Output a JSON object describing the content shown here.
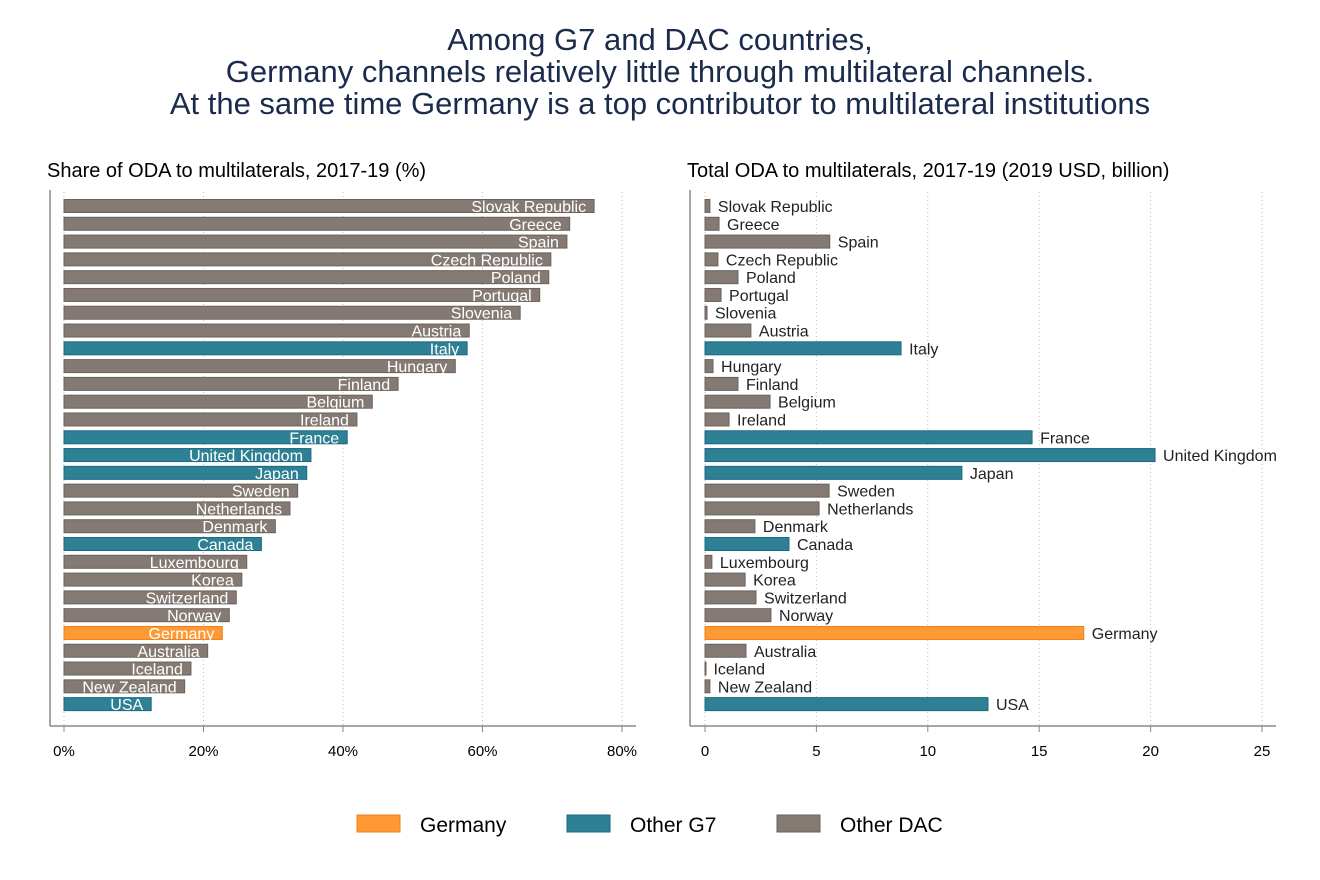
{
  "title_lines": [
    "Among G7 and DAC countries,",
    "Germany channels relatively little through multilateral channels.",
    "At the same time Germany is a top contributor to multilateral institutions"
  ],
  "colors": {
    "Germany": "#ff9933",
    "Other G7": "#2e8094",
    "Other DAC": "#857a73"
  },
  "legend": [
    "Germany",
    "Other G7",
    "Other DAC"
  ],
  "chart_data": [
    {
      "type": "bar",
      "orientation": "horizontal",
      "title": "Share of ODA to multilaterals, 2017-19 (%)",
      "xlim": [
        0,
        80
      ],
      "xticks": [
        0,
        20,
        40,
        60,
        80
      ],
      "xtick_labels": [
        "0%",
        "20%",
        "40%",
        "60%",
        "80%"
      ],
      "grid": "vertical dotted",
      "labels_inside": true,
      "categories": [
        "Slovak Republic",
        "Greece",
        "Spain",
        "Czech Republic",
        "Poland",
        "Portugal",
        "Slovenia",
        "Austria",
        "Italy",
        "Hungary",
        "Finland",
        "Belgium",
        "Ireland",
        "France",
        "United Kingdom",
        "Japan",
        "Sweden",
        "Netherlands",
        "Denmark",
        "Canada",
        "Luxembourg",
        "Korea",
        "Switzerland",
        "Norway",
        "Germany",
        "Australia",
        "Iceland",
        "New Zealand",
        "USA"
      ],
      "groups": [
        "Other DAC",
        "Other DAC",
        "Other DAC",
        "Other DAC",
        "Other DAC",
        "Other DAC",
        "Other DAC",
        "Other DAC",
        "Other G7",
        "Other DAC",
        "Other DAC",
        "Other DAC",
        "Other DAC",
        "Other G7",
        "Other G7",
        "Other G7",
        "Other DAC",
        "Other DAC",
        "Other DAC",
        "Other G7",
        "Other DAC",
        "Other DAC",
        "Other DAC",
        "Other DAC",
        "Germany",
        "Other DAC",
        "Other DAC",
        "Other DAC",
        "Other G7"
      ],
      "values": [
        76.0,
        72.5,
        72.1,
        69.8,
        69.5,
        68.2,
        65.4,
        58.1,
        57.8,
        56.1,
        47.9,
        44.2,
        42.0,
        40.6,
        35.4,
        34.8,
        33.5,
        32.4,
        30.3,
        28.3,
        26.2,
        25.5,
        24.7,
        23.7,
        22.7,
        20.6,
        18.2,
        17.3,
        12.5
      ]
    },
    {
      "type": "bar",
      "orientation": "horizontal",
      "title": "Total ODA to multilaterals, 2017-19 (2019 USD, billion)",
      "xlim": [
        0,
        25
      ],
      "xticks": [
        0,
        5,
        10,
        15,
        20,
        25
      ],
      "xtick_labels": [
        "0",
        "5",
        "10",
        "15",
        "20",
        "25"
      ],
      "grid": "vertical dotted",
      "labels_inside": false,
      "categories": [
        "Slovak Republic",
        "Greece",
        "Spain",
        "Czech Republic",
        "Poland",
        "Portugal",
        "Slovenia",
        "Austria",
        "Italy",
        "Hungary",
        "Finland",
        "Belgium",
        "Ireland",
        "France",
        "United Kingdom",
        "Japan",
        "Sweden",
        "Netherlands",
        "Denmark",
        "Canada",
        "Luxembourg",
        "Korea",
        "Switzerland",
        "Norway",
        "Germany",
        "Australia",
        "Iceland",
        "New Zealand",
        "USA"
      ],
      "groups": [
        "Other DAC",
        "Other DAC",
        "Other DAC",
        "Other DAC",
        "Other DAC",
        "Other DAC",
        "Other DAC",
        "Other DAC",
        "Other G7",
        "Other DAC",
        "Other DAC",
        "Other DAC",
        "Other DAC",
        "Other G7",
        "Other G7",
        "Other G7",
        "Other DAC",
        "Other DAC",
        "Other DAC",
        "Other G7",
        "Other DAC",
        "Other DAC",
        "Other DAC",
        "Other DAC",
        "Germany",
        "Other DAC",
        "Other DAC",
        "Other DAC",
        "Other G7"
      ],
      "values": [
        0.22,
        0.63,
        5.6,
        0.58,
        1.48,
        0.72,
        0.09,
        2.06,
        8.8,
        0.36,
        1.48,
        2.92,
        1.08,
        14.68,
        20.2,
        11.53,
        5.57,
        5.12,
        2.24,
        3.77,
        0.31,
        1.8,
        2.29,
        2.96,
        17.0,
        1.84,
        0.02,
        0.22,
        12.7
      ]
    }
  ]
}
